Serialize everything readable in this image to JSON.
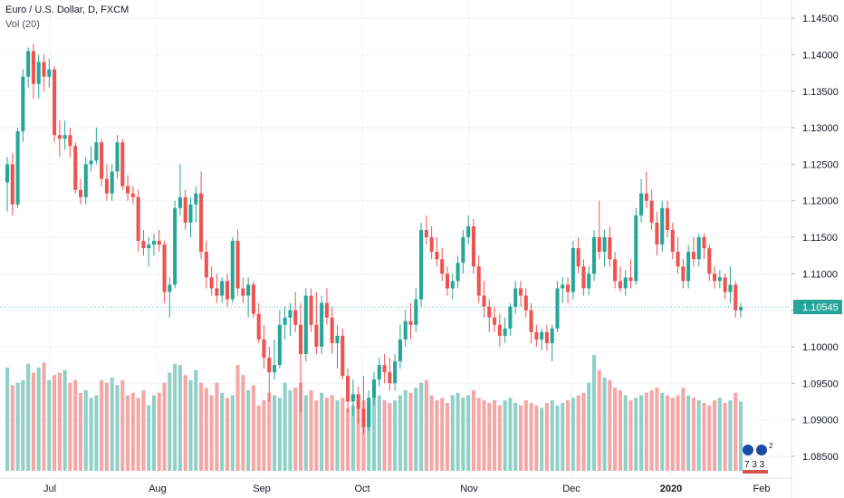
{
  "legend": {
    "title": "Euro / U.S. Dollar, D, FXCM",
    "volume": "Vol (20)"
  },
  "colors": {
    "up": "#26a69a",
    "down": "#ef5350",
    "vol_up": "#8fd0c7",
    "vol_down": "#f4a7a6",
    "grid": "#f0f3fa",
    "axis_text": "#131722",
    "last_price_line": "#26a69a",
    "last_price_bg": "#26a69a"
  },
  "watermark": {
    "name": "emoji-sticker-watermark",
    "text": "7 3 3"
  },
  "chart_data": {
    "type": "candlestick",
    "symbol": "Euro / U.S. Dollar",
    "timeframe": "D",
    "exchange": "FXCM",
    "volume_indicator": "Vol (20)",
    "y_axis": {
      "ticks": [
        "1.14500",
        "1.14000",
        "1.13500",
        "1.13000",
        "1.12500",
        "1.12000",
        "1.11500",
        "1.11000",
        "1.10500",
        "1.10000",
        "1.09500",
        "1.09000",
        "1.08500"
      ],
      "range": [
        1.083,
        1.1475
      ]
    },
    "x_axis": {
      "labels": [
        "Jul",
        "Aug",
        "Sep",
        "Oct",
        "Nov",
        "Dec",
        "2020",
        "Feb"
      ]
    },
    "last_price": "1.10545",
    "grid": true,
    "ohlc": [
      [
        1.1225,
        1.126,
        1.1185,
        1.125
      ],
      [
        1.125,
        1.1265,
        1.118,
        1.1195
      ],
      [
        1.1195,
        1.13,
        1.119,
        1.1295
      ],
      [
        1.1295,
        1.138,
        1.128,
        1.137
      ],
      [
        1.137,
        1.141,
        1.1355,
        1.1405
      ],
      [
        1.1405,
        1.1415,
        1.134,
        1.136
      ],
      [
        1.136,
        1.14,
        1.134,
        1.139
      ],
      [
        1.139,
        1.14,
        1.135,
        1.137
      ],
      [
        1.137,
        1.1395,
        1.1355,
        1.138
      ],
      [
        1.138,
        1.1385,
        1.128,
        1.129
      ],
      [
        1.129,
        1.131,
        1.126,
        1.1285
      ],
      [
        1.1285,
        1.131,
        1.127,
        1.129
      ],
      [
        1.129,
        1.13,
        1.126,
        1.1275
      ],
      [
        1.1275,
        1.128,
        1.121,
        1.1215
      ],
      [
        1.1215,
        1.123,
        1.1195,
        1.1205
      ],
      [
        1.1205,
        1.126,
        1.1195,
        1.125
      ],
      [
        1.125,
        1.1275,
        1.124,
        1.1255
      ],
      [
        1.1255,
        1.13,
        1.125,
        1.128
      ],
      [
        1.128,
        1.1285,
        1.122,
        1.123
      ],
      [
        1.123,
        1.125,
        1.12,
        1.121
      ],
      [
        1.121,
        1.125,
        1.12,
        1.124
      ],
      [
        1.124,
        1.129,
        1.123,
        1.128
      ],
      [
        1.128,
        1.1285,
        1.1215,
        1.122
      ],
      [
        1.122,
        1.1235,
        1.12,
        1.121
      ],
      [
        1.121,
        1.122,
        1.1195,
        1.1205
      ],
      [
        1.1205,
        1.1215,
        1.113,
        1.1145
      ],
      [
        1.1145,
        1.116,
        1.1125,
        1.1135
      ],
      [
        1.1135,
        1.115,
        1.111,
        1.114
      ],
      [
        1.114,
        1.1155,
        1.1125,
        1.1145
      ],
      [
        1.1145,
        1.116,
        1.113,
        1.114
      ],
      [
        1.114,
        1.1145,
        1.106,
        1.1075
      ],
      [
        1.1075,
        1.1095,
        1.104,
        1.1085
      ],
      [
        1.1085,
        1.12,
        1.108,
        1.119
      ],
      [
        1.119,
        1.125,
        1.118,
        1.1205
      ],
      [
        1.1205,
        1.1215,
        1.116,
        1.117
      ],
      [
        1.117,
        1.1205,
        1.115,
        1.1195
      ],
      [
        1.1195,
        1.122,
        1.117,
        1.121
      ],
      [
        1.121,
        1.124,
        1.112,
        1.113
      ],
      [
        1.113,
        1.1145,
        1.108,
        1.1095
      ],
      [
        1.1095,
        1.111,
        1.107,
        1.108
      ],
      [
        1.108,
        1.11,
        1.106,
        1.107
      ],
      [
        1.107,
        1.1095,
        1.106,
        1.109
      ],
      [
        1.109,
        1.11,
        1.1055,
        1.1065
      ],
      [
        1.1065,
        1.115,
        1.106,
        1.1145
      ],
      [
        1.1145,
        1.116,
        1.107,
        1.108
      ],
      [
        1.108,
        1.1095,
        1.106,
        1.107
      ],
      [
        1.107,
        1.1095,
        1.104,
        1.1085
      ],
      [
        1.1085,
        1.109,
        1.104,
        1.1045
      ],
      [
        1.1045,
        1.106,
        1.1005,
        1.101
      ],
      [
        1.101,
        1.103,
        1.097,
        1.0985
      ],
      [
        1.0985,
        1.1,
        1.0925,
        1.0965
      ],
      [
        1.0965,
        1.101,
        1.0955,
        1.0975
      ],
      [
        1.0975,
        1.105,
        1.097,
        1.103
      ],
      [
        1.103,
        1.1055,
        1.101,
        1.104
      ],
      [
        1.104,
        1.106,
        1.1015,
        1.105
      ],
      [
        1.105,
        1.1075,
        1.102,
        1.103
      ],
      [
        1.103,
        1.106,
        1.091,
        1.099
      ],
      [
        1.099,
        1.108,
        1.098,
        1.107
      ],
      [
        1.107,
        1.108,
        1.102,
        1.103
      ],
      [
        1.103,
        1.1075,
        1.099,
        1.1
      ],
      [
        1.1,
        1.107,
        1.099,
        1.106
      ],
      [
        1.106,
        1.108,
        1.103,
        1.104
      ],
      [
        1.104,
        1.1055,
        1.099,
        1.1005
      ],
      [
        1.1005,
        1.103,
        1.097,
        1.1015
      ],
      [
        1.1015,
        1.1025,
        1.0955,
        1.096
      ],
      [
        1.096,
        1.097,
        1.091,
        1.0925
      ],
      [
        1.0925,
        1.0955,
        1.0905,
        1.0935
      ],
      [
        1.0935,
        1.0945,
        1.0895,
        1.0915
      ],
      [
        1.0915,
        1.096,
        1.088,
        1.089
      ],
      [
        1.089,
        1.094,
        1.0885,
        1.093
      ],
      [
        1.093,
        1.0965,
        1.092,
        1.0955
      ],
      [
        1.0955,
        1.0985,
        1.0945,
        1.0975
      ],
      [
        1.0975,
        1.099,
        1.095,
        1.0965
      ],
      [
        1.0965,
        1.0985,
        1.094,
        1.095
      ],
      [
        1.095,
        1.099,
        1.094,
        1.098
      ],
      [
        1.098,
        1.103,
        1.097,
        1.101
      ],
      [
        1.101,
        1.105,
        1.1,
        1.1035
      ],
      [
        1.1035,
        1.106,
        1.101,
        1.103
      ],
      [
        1.103,
        1.108,
        1.102,
        1.1065
      ],
      [
        1.1065,
        1.117,
        1.1055,
        1.116
      ],
      [
        1.116,
        1.118,
        1.114,
        1.115
      ],
      [
        1.115,
        1.1165,
        1.112,
        1.113
      ],
      [
        1.113,
        1.115,
        1.111,
        1.112
      ],
      [
        1.112,
        1.1135,
        1.109,
        1.11
      ],
      [
        1.11,
        1.111,
        1.107,
        1.108
      ],
      [
        1.108,
        1.11,
        1.1065,
        1.109
      ],
      [
        1.109,
        1.1125,
        1.108,
        1.1115
      ],
      [
        1.1115,
        1.116,
        1.11,
        1.115
      ],
      [
        1.115,
        1.118,
        1.114,
        1.1165
      ],
      [
        1.1165,
        1.1175,
        1.11,
        1.111
      ],
      [
        1.111,
        1.1125,
        1.106,
        1.107
      ],
      [
        1.107,
        1.109,
        1.104,
        1.1055
      ],
      [
        1.1055,
        1.1065,
        1.102,
        1.104
      ],
      [
        1.104,
        1.1055,
        1.102,
        1.103
      ],
      [
        1.103,
        1.1045,
        1.1,
        1.1015
      ],
      [
        1.1015,
        1.104,
        1.1005,
        1.1025
      ],
      [
        1.1025,
        1.106,
        1.1015,
        1.1055
      ],
      [
        1.1055,
        1.109,
        1.1045,
        1.108
      ],
      [
        1.108,
        1.109,
        1.1055,
        1.107
      ],
      [
        1.107,
        1.108,
        1.104,
        1.105
      ],
      [
        1.105,
        1.106,
        1.1005,
        1.102
      ],
      [
        1.102,
        1.103,
        1.1,
        1.101
      ],
      [
        1.101,
        1.1025,
        1.0995,
        1.102
      ],
      [
        1.102,
        1.103,
        1.0995,
        1.1005
      ],
      [
        1.1005,
        1.103,
        1.098,
        1.1025
      ],
      [
        1.1025,
        1.109,
        1.102,
        1.108
      ],
      [
        1.108,
        1.1095,
        1.106,
        1.1085
      ],
      [
        1.1085,
        1.1095,
        1.106,
        1.1075
      ],
      [
        1.1075,
        1.1145,
        1.1065,
        1.1135
      ],
      [
        1.1135,
        1.115,
        1.11,
        1.111
      ],
      [
        1.111,
        1.112,
        1.107,
        1.108
      ],
      [
        1.108,
        1.111,
        1.107,
        1.11
      ],
      [
        1.11,
        1.116,
        1.109,
        1.115
      ],
      [
        1.115,
        1.12,
        1.112,
        1.113
      ],
      [
        1.113,
        1.116,
        1.111,
        1.115
      ],
      [
        1.115,
        1.1165,
        1.111,
        1.112
      ],
      [
        1.112,
        1.113,
        1.108,
        1.109
      ],
      [
        1.109,
        1.111,
        1.1075,
        1.108
      ],
      [
        1.108,
        1.1105,
        1.107,
        1.1095
      ],
      [
        1.1095,
        1.112,
        1.108,
        1.109
      ],
      [
        1.109,
        1.119,
        1.1085,
        1.118
      ],
      [
        1.118,
        1.123,
        1.117,
        1.121
      ],
      [
        1.121,
        1.124,
        1.119,
        1.12
      ],
      [
        1.12,
        1.1215,
        1.116,
        1.117
      ],
      [
        1.117,
        1.1185,
        1.1125,
        1.114
      ],
      [
        1.114,
        1.12,
        1.113,
        1.119
      ],
      [
        1.119,
        1.12,
        1.115,
        1.116
      ],
      [
        1.116,
        1.117,
        1.112,
        1.113
      ],
      [
        1.113,
        1.115,
        1.11,
        1.111
      ],
      [
        1.111,
        1.112,
        1.108,
        1.109
      ],
      [
        1.109,
        1.114,
        1.108,
        1.113
      ],
      [
        1.113,
        1.115,
        1.111,
        1.112
      ],
      [
        1.112,
        1.1155,
        1.111,
        1.115
      ],
      [
        1.115,
        1.1155,
        1.112,
        1.1135
      ],
      [
        1.1135,
        1.114,
        1.109,
        1.11
      ],
      [
        1.11,
        1.111,
        1.108,
        1.109
      ],
      [
        1.109,
        1.1105,
        1.108,
        1.1095
      ],
      [
        1.1095,
        1.11,
        1.1065,
        1.1075
      ],
      [
        1.1075,
        1.111,
        1.106,
        1.1085
      ],
      [
        1.1085,
        1.109,
        1.104,
        1.105
      ],
      [
        1.105,
        1.106,
        1.104,
        1.1054
      ]
    ],
    "volume": [
      82,
      68,
      70,
      72,
      85,
      78,
      82,
      86,
      72,
      76,
      78,
      80,
      70,
      72,
      62,
      64,
      58,
      60,
      72,
      70,
      74,
      68,
      72,
      60,
      62,
      58,
      64,
      52,
      60,
      62,
      70,
      78,
      85,
      84,
      76,
      72,
      80,
      70,
      66,
      60,
      70,
      62,
      58,
      60,
      84,
      76,
      64,
      68,
      52,
      56,
      62,
      60,
      58,
      70,
      64,
      66,
      70,
      60,
      64,
      56,
      62,
      58,
      60,
      56,
      58,
      50,
      52,
      54,
      56,
      54,
      58,
      60,
      56,
      54,
      56,
      60,
      64,
      62,
      66,
      70,
      72,
      60,
      56,
      58,
      54,
      60,
      62,
      58,
      60,
      64,
      58,
      56,
      54,
      56,
      52,
      56,
      58,
      54,
      52,
      56,
      54,
      52,
      50,
      54,
      56,
      52,
      54,
      56,
      58,
      60,
      62,
      70,
      92,
      80,
      74,
      72,
      66,
      64,
      60,
      56,
      58,
      60,
      62,
      64,
      66,
      62,
      60,
      58,
      60,
      66,
      60,
      58,
      56,
      54,
      52,
      56,
      58,
      54,
      56,
      62,
      55
    ],
    "dates": {
      "first_visible_month": "Jun 2019",
      "last_visible_month": "Jan 2020"
    }
  }
}
